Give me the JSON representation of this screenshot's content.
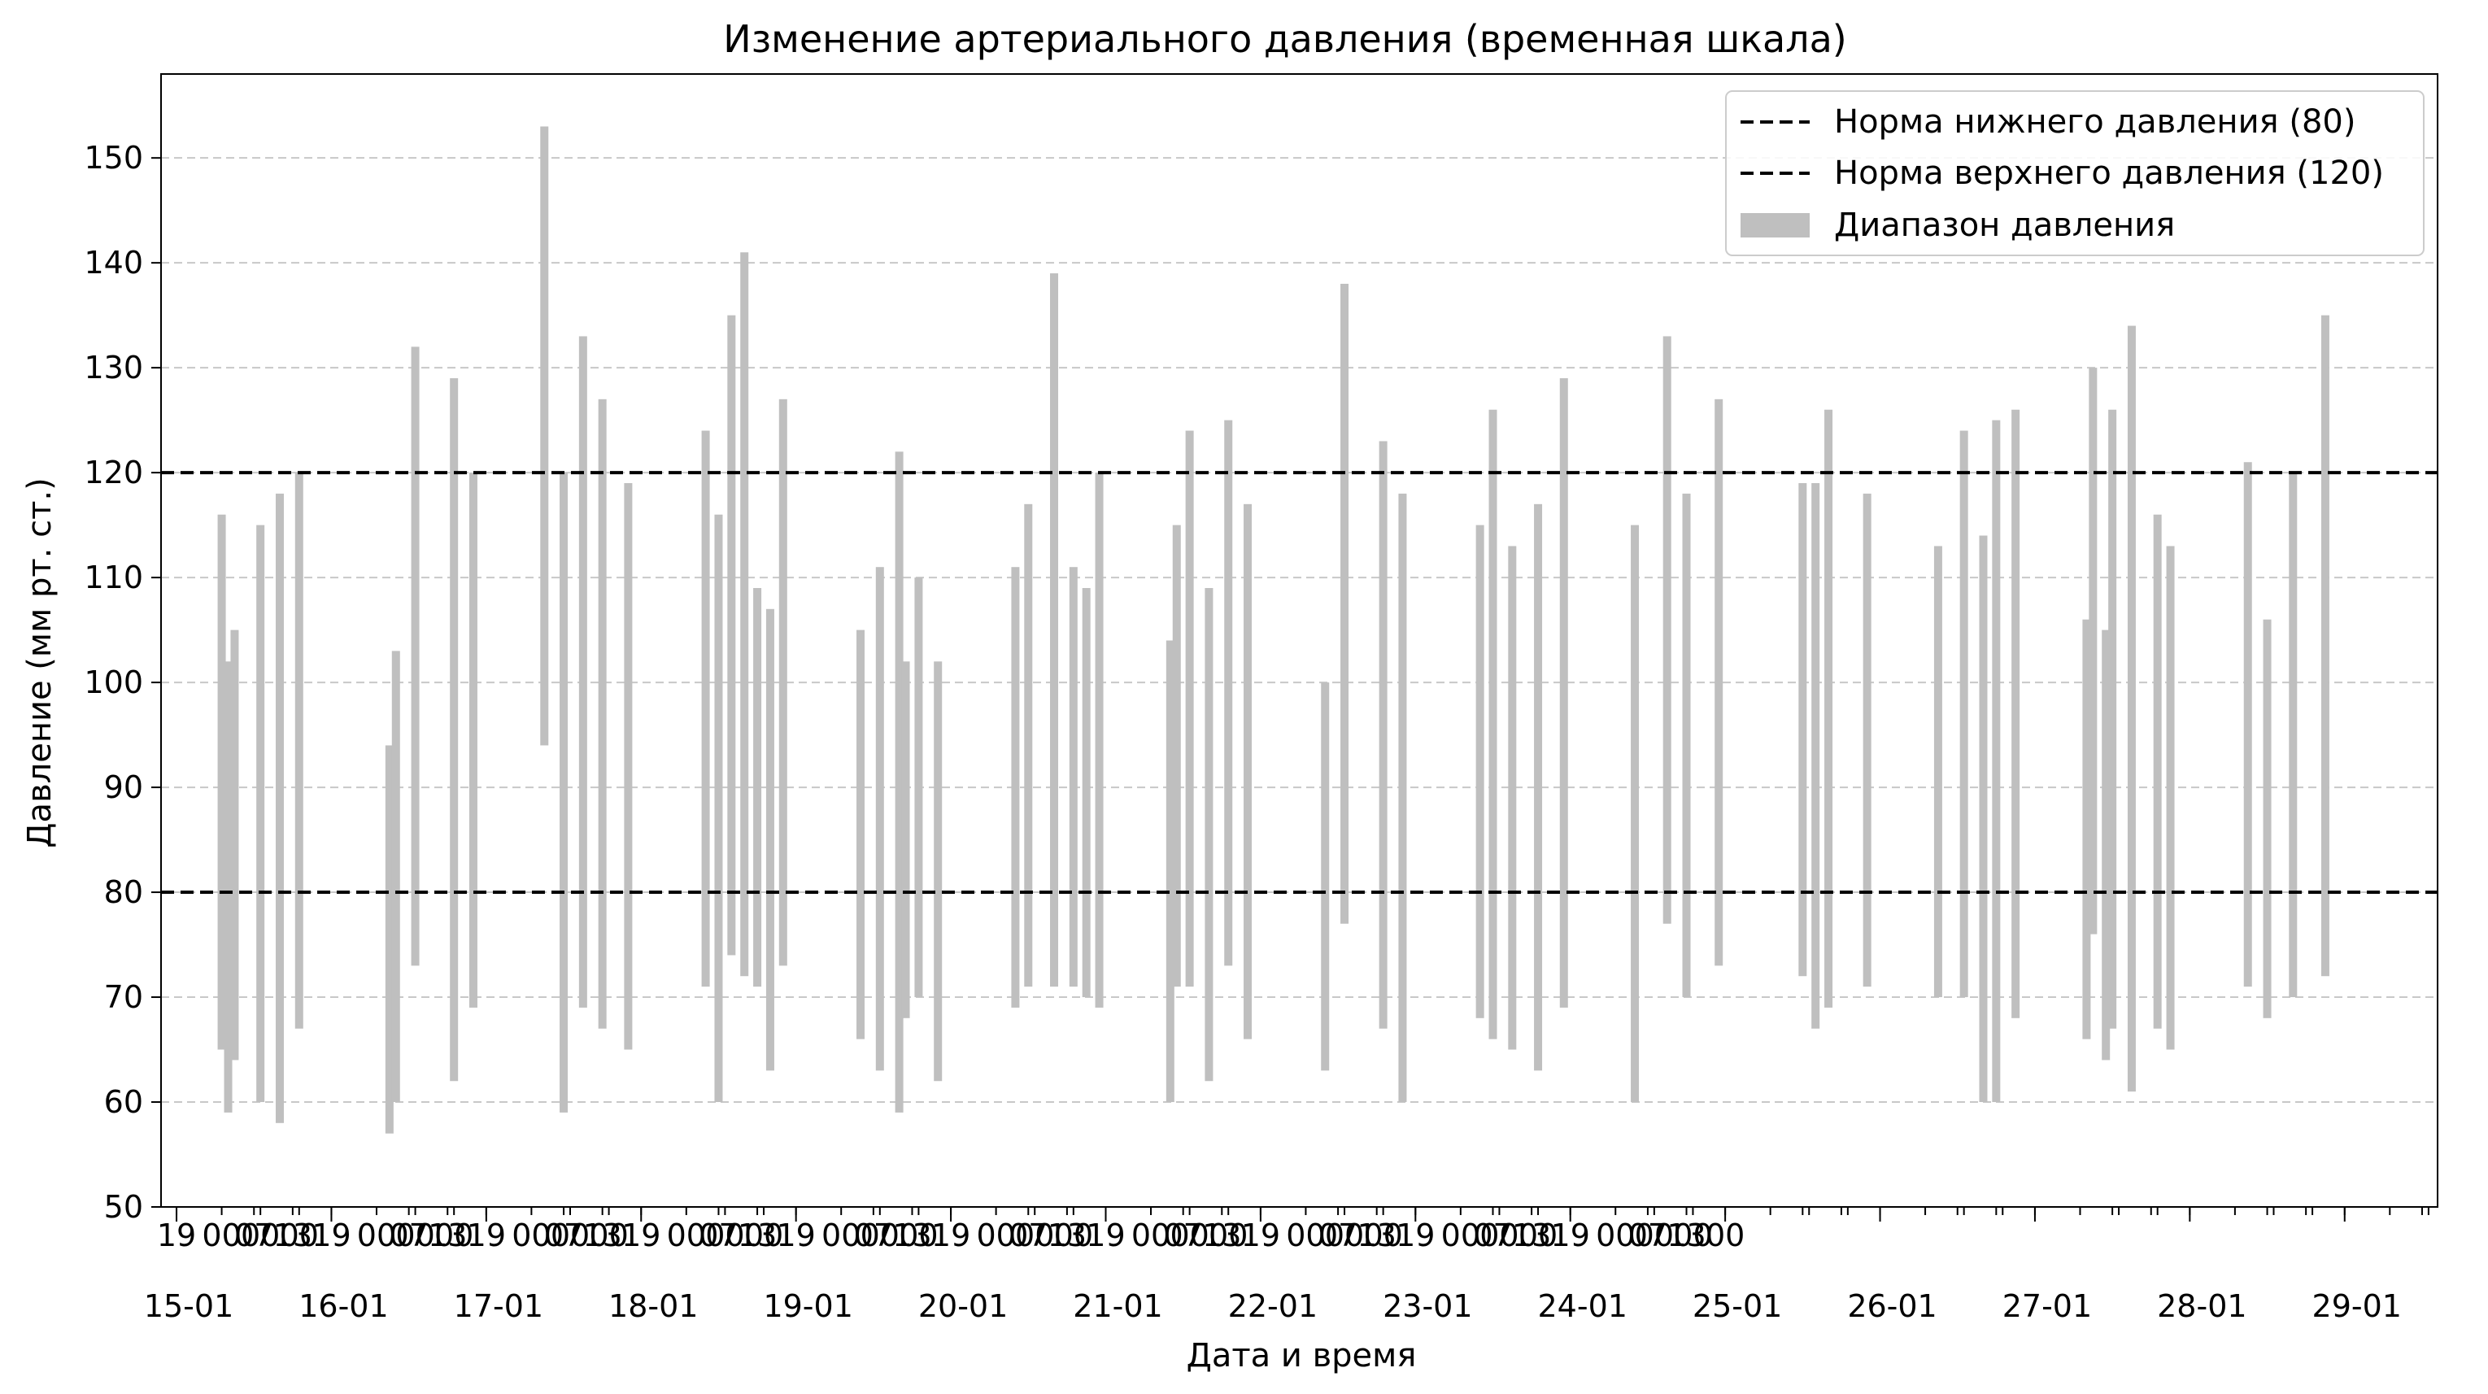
{
  "chart_data": {
    "type": "bar",
    "title": "Изменение артериального давления (временная шкала)",
    "xlabel": "Дата и время",
    "ylabel": "Давление (мм рт. ст.)",
    "ylim": [
      50,
      158
    ],
    "yticks": [
      50,
      60,
      70,
      80,
      90,
      100,
      110,
      120,
      130,
      140,
      150
    ],
    "xlim_days": [
      -0.1,
      14.6
    ],
    "x_day_labels": [
      "15-01",
      "16-01",
      "17-01",
      "18-01",
      "19-01",
      "20-01",
      "21-01",
      "22-01",
      "23-01",
      "24-01",
      "25-01",
      "26-01",
      "27-01",
      "28-01",
      "29-01"
    ],
    "x_hour_labels": [
      "19",
      "00",
      "07",
      "00",
      "13",
      "00",
      "19",
      "00",
      "07",
      "00",
      "13",
      "00",
      "19",
      "00",
      "07",
      "00",
      "13",
      "00",
      "19",
      "00",
      "07",
      "00",
      "13",
      "00",
      "19",
      "00",
      "07",
      "00",
      "13",
      "00",
      "19",
      "00",
      "07",
      "00",
      "13",
      "00",
      "19",
      "00",
      "07",
      "00",
      "13",
      "00",
      "19",
      "00",
      "07",
      "00",
      "13",
      "00",
      "19",
      "00",
      "07",
      "00",
      "13",
      "00",
      "19",
      "00",
      "07",
      "00",
      "13",
      "00",
      "00"
    ],
    "grid": "y-dashed",
    "legend_position": "top-right",
    "reference_lines": [
      {
        "name": "Норма нижнего давления (80)",
        "value": 80,
        "color": "#000000",
        "style": "dashed"
      },
      {
        "name": "Норма верхнего давления (120)",
        "value": 120,
        "color": "#000000",
        "style": "dashed"
      }
    ],
    "series": [
      {
        "name": "Диапазон давления",
        "color": "#bfbfbf",
        "ranges": [
          {
            "t": "15-01 07:00",
            "low": 65,
            "high": 116
          },
          {
            "t": "15-01 08:00",
            "low": 59,
            "high": 102
          },
          {
            "t": "15-01 09:00",
            "low": 64,
            "high": 105
          },
          {
            "t": "15-01 13:00",
            "low": 60,
            "high": 115
          },
          {
            "t": "15-01 16:00",
            "low": 58,
            "high": 118
          },
          {
            "t": "15-01 19:00",
            "low": 67,
            "high": 120
          },
          {
            "t": "16-01 09:00",
            "low": 57,
            "high": 94
          },
          {
            "t": "16-01 10:00",
            "low": 60,
            "high": 103
          },
          {
            "t": "16-01 13:00",
            "low": 73,
            "high": 132
          },
          {
            "t": "16-01 19:00",
            "low": 62,
            "high": 129
          },
          {
            "t": "16-01 22:00",
            "low": 69,
            "high": 120
          },
          {
            "t": "17-01 09:00",
            "low": 94,
            "high": 153
          },
          {
            "t": "17-01 12:00",
            "low": 59,
            "high": 120
          },
          {
            "t": "17-01 15:00",
            "low": 69,
            "high": 133
          },
          {
            "t": "17-01 18:00",
            "low": 67,
            "high": 127
          },
          {
            "t": "17-01 22:00",
            "low": 65,
            "high": 119
          },
          {
            "t": "18-01 10:00",
            "low": 71,
            "high": 124
          },
          {
            "t": "18-01 12:00",
            "low": 60,
            "high": 116
          },
          {
            "t": "18-01 14:00",
            "low": 74,
            "high": 135
          },
          {
            "t": "18-01 16:00",
            "low": 72,
            "high": 141
          },
          {
            "t": "18-01 18:00",
            "low": 71,
            "high": 109
          },
          {
            "t": "18-01 20:00",
            "low": 63,
            "high": 107
          },
          {
            "t": "18-01 22:00",
            "low": 73,
            "high": 127
          },
          {
            "t": "19-01 10:00",
            "low": 66,
            "high": 105
          },
          {
            "t": "19-01 13:00",
            "low": 63,
            "high": 111
          },
          {
            "t": "19-01 16:00",
            "low": 59,
            "high": 122
          },
          {
            "t": "19-01 17:00",
            "low": 68,
            "high": 102
          },
          {
            "t": "19-01 19:00",
            "low": 70,
            "high": 110
          },
          {
            "t": "19-01 22:00",
            "low": 62,
            "high": 102
          },
          {
            "t": "20-01 10:00",
            "low": 69,
            "high": 111
          },
          {
            "t": "20-01 12:00",
            "low": 71,
            "high": 117
          },
          {
            "t": "20-01 16:00",
            "low": 71,
            "high": 139
          },
          {
            "t": "20-01 19:00",
            "low": 71,
            "high": 111
          },
          {
            "t": "20-01 21:00",
            "low": 70,
            "high": 109
          },
          {
            "t": "20-01 23:00",
            "low": 69,
            "high": 120
          },
          {
            "t": "21-01 10:00",
            "low": 60,
            "high": 104
          },
          {
            "t": "21-01 11:00",
            "low": 71,
            "high": 115
          },
          {
            "t": "21-01 13:00",
            "low": 71,
            "high": 124
          },
          {
            "t": "21-01 16:00",
            "low": 62,
            "high": 109
          },
          {
            "t": "21-01 19:00",
            "low": 73,
            "high": 125
          },
          {
            "t": "21-01 22:00",
            "low": 66,
            "high": 117
          },
          {
            "t": "22-01 10:00",
            "low": 63,
            "high": 100
          },
          {
            "t": "22-01 13:00",
            "low": 77,
            "high": 138
          },
          {
            "t": "22-01 19:00",
            "low": 67,
            "high": 123
          },
          {
            "t": "22-01 22:00",
            "low": 60,
            "high": 118
          },
          {
            "t": "23-01 10:00",
            "low": 68,
            "high": 115
          },
          {
            "t": "23-01 12:00",
            "low": 66,
            "high": 126
          },
          {
            "t": "23-01 15:00",
            "low": 65,
            "high": 113
          },
          {
            "t": "23-01 19:00",
            "low": 63,
            "high": 117
          },
          {
            "t": "23-01 23:00",
            "low": 69,
            "high": 129
          },
          {
            "t": "24-01 10:00",
            "low": 60,
            "high": 115
          },
          {
            "t": "24-01 15:00",
            "low": 77,
            "high": 133
          },
          {
            "t": "24-01 18:00",
            "low": 70,
            "high": 118
          },
          {
            "t": "24-01 23:00",
            "low": 73,
            "high": 127
          },
          {
            "t": "25-01 12:00",
            "low": 72,
            "high": 119
          },
          {
            "t": "25-01 14:00",
            "low": 67,
            "high": 119
          },
          {
            "t": "25-01 16:00",
            "low": 69,
            "high": 126
          },
          {
            "t": "25-01 22:00",
            "low": 71,
            "high": 118
          },
          {
            "t": "26-01 09:00",
            "low": 70,
            "high": 113
          },
          {
            "t": "26-01 13:00",
            "low": 70,
            "high": 124
          },
          {
            "t": "26-01 16:00",
            "low": 60,
            "high": 114
          },
          {
            "t": "26-01 18:00",
            "low": 60,
            "high": 125
          },
          {
            "t": "26-01 21:00",
            "low": 68,
            "high": 126
          },
          {
            "t": "27-01 08:00",
            "low": 66,
            "high": 106
          },
          {
            "t": "27-01 09:00",
            "low": 76,
            "high": 130
          },
          {
            "t": "27-01 11:00",
            "low": 64,
            "high": 105
          },
          {
            "t": "27-01 12:00",
            "low": 67,
            "high": 126
          },
          {
            "t": "27-01 15:00",
            "low": 61,
            "high": 134
          },
          {
            "t": "27-01 19:00",
            "low": 67,
            "high": 116
          },
          {
            "t": "27-01 21:00",
            "low": 65,
            "high": 113
          },
          {
            "t": "28-01 09:00",
            "low": 71,
            "high": 121
          },
          {
            "t": "28-01 12:00",
            "low": 68,
            "high": 106
          },
          {
            "t": "28-01 16:00",
            "low": 70,
            "high": 120
          },
          {
            "t": "28-01 21:00",
            "low": 72,
            "high": 135
          }
        ]
      }
    ]
  }
}
